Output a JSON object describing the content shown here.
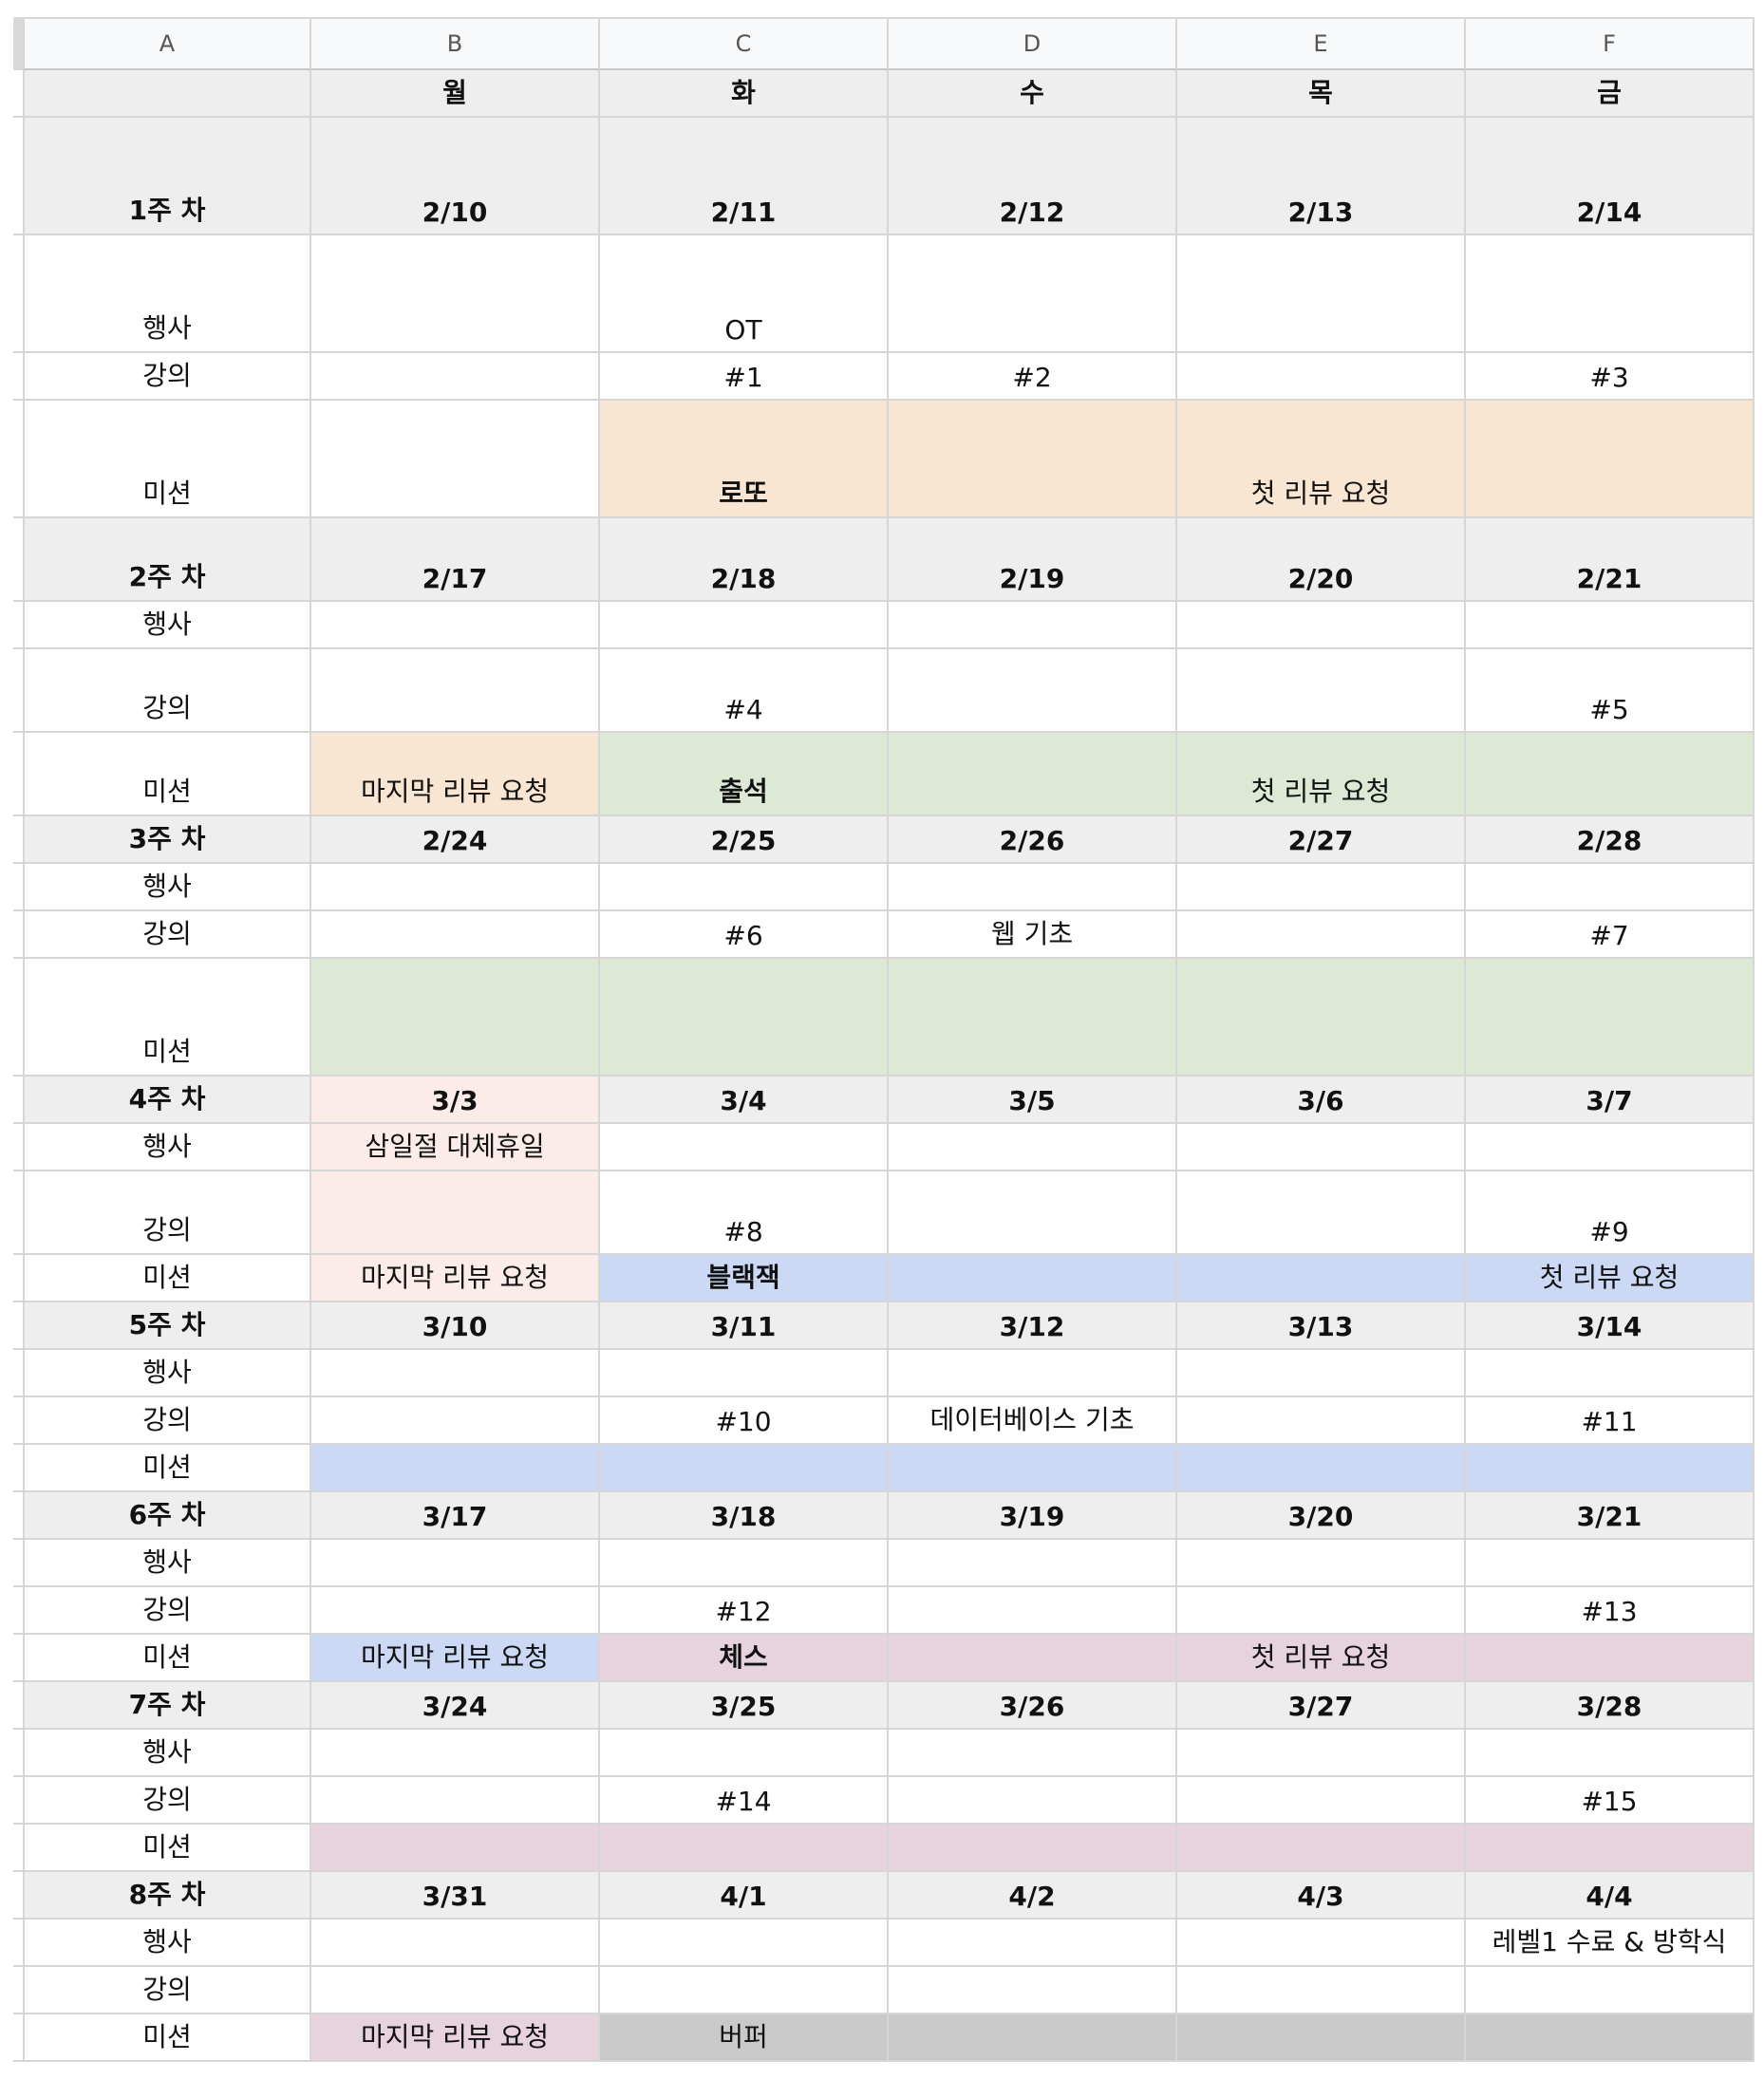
{
  "columns": [
    "A",
    "B",
    "C",
    "D",
    "E",
    "F"
  ],
  "colors": {
    "week_header": "#eeeeee",
    "orange": "#f8e5d2",
    "green": "#dde9d5",
    "pink": "#fbecea",
    "blue": "#cbd9f4",
    "purple": "#e6d3de",
    "gray": "#c9c9c9",
    "white": "#ffffff"
  },
  "rows": [
    {
      "h": 50,
      "type": "week",
      "cells": [
        {
          "t": "",
          "bg": "week_header"
        },
        {
          "t": "월",
          "bg": "week_header",
          "bold": true
        },
        {
          "t": "화",
          "bg": "week_header",
          "bold": true
        },
        {
          "t": "수",
          "bg": "week_header",
          "bold": true
        },
        {
          "t": "목",
          "bg": "week_header",
          "bold": true
        },
        {
          "t": "금",
          "bg": "week_header",
          "bold": true
        }
      ]
    },
    {
      "h": 124,
      "type": "week",
      "cells": [
        {
          "t": "1주 차",
          "bg": "week_header",
          "bold": true
        },
        {
          "t": "2/10",
          "bg": "week_header",
          "bold": true
        },
        {
          "t": "2/11",
          "bg": "week_header",
          "bold": true
        },
        {
          "t": "2/12",
          "bg": "week_header",
          "bold": true
        },
        {
          "t": "2/13",
          "bg": "week_header",
          "bold": true
        },
        {
          "t": "2/14",
          "bg": "week_header",
          "bold": true
        }
      ]
    },
    {
      "h": 124,
      "cells": [
        {
          "t": "행사"
        },
        {
          "t": ""
        },
        {
          "t": "OT"
        },
        {
          "t": ""
        },
        {
          "t": ""
        },
        {
          "t": ""
        }
      ]
    },
    {
      "h": 50,
      "cells": [
        {
          "t": "강의"
        },
        {
          "t": ""
        },
        {
          "t": "#1"
        },
        {
          "t": "#2"
        },
        {
          "t": ""
        },
        {
          "t": "#3"
        }
      ]
    },
    {
      "h": 124,
      "cells": [
        {
          "t": "미션"
        },
        {
          "t": ""
        },
        {
          "t": "로또",
          "bg": "orange",
          "bold": true
        },
        {
          "t": "",
          "bg": "orange"
        },
        {
          "t": "첫 리뷰 요청",
          "bg": "orange"
        },
        {
          "t": "",
          "bg": "orange"
        }
      ]
    },
    {
      "h": 88,
      "type": "week",
      "cells": [
        {
          "t": "2주 차",
          "bg": "week_header",
          "bold": true
        },
        {
          "t": "2/17",
          "bg": "week_header",
          "bold": true
        },
        {
          "t": "2/18",
          "bg": "week_header",
          "bold": true
        },
        {
          "t": "2/19",
          "bg": "week_header",
          "bold": true
        },
        {
          "t": "2/20",
          "bg": "week_header",
          "bold": true
        },
        {
          "t": "2/21",
          "bg": "week_header",
          "bold": true
        }
      ]
    },
    {
      "h": 50,
      "cells": [
        {
          "t": "행사"
        },
        {
          "t": ""
        },
        {
          "t": ""
        },
        {
          "t": ""
        },
        {
          "t": ""
        },
        {
          "t": ""
        }
      ]
    },
    {
      "h": 88,
      "cells": [
        {
          "t": "강의"
        },
        {
          "t": ""
        },
        {
          "t": "#4"
        },
        {
          "t": ""
        },
        {
          "t": ""
        },
        {
          "t": "#5"
        }
      ]
    },
    {
      "h": 88,
      "cells": [
        {
          "t": "미션"
        },
        {
          "t": "마지막 리뷰 요청",
          "bg": "orange"
        },
        {
          "t": "출석",
          "bg": "green",
          "bold": true
        },
        {
          "t": "",
          "bg": "green"
        },
        {
          "t": "첫 리뷰 요청",
          "bg": "green"
        },
        {
          "t": "",
          "bg": "green"
        }
      ]
    },
    {
      "h": 50,
      "type": "week",
      "cells": [
        {
          "t": "3주 차",
          "bg": "week_header",
          "bold": true
        },
        {
          "t": "2/24",
          "bg": "week_header",
          "bold": true
        },
        {
          "t": "2/25",
          "bg": "week_header",
          "bold": true
        },
        {
          "t": "2/26",
          "bg": "week_header",
          "bold": true
        },
        {
          "t": "2/27",
          "bg": "week_header",
          "bold": true
        },
        {
          "t": "2/28",
          "bg": "week_header",
          "bold": true
        }
      ]
    },
    {
      "h": 50,
      "cells": [
        {
          "t": "행사"
        },
        {
          "t": ""
        },
        {
          "t": ""
        },
        {
          "t": ""
        },
        {
          "t": ""
        },
        {
          "t": ""
        }
      ]
    },
    {
      "h": 50,
      "cells": [
        {
          "t": "강의"
        },
        {
          "t": ""
        },
        {
          "t": "#6"
        },
        {
          "t": "웹 기초"
        },
        {
          "t": ""
        },
        {
          "t": "#7"
        }
      ]
    },
    {
      "h": 124,
      "cells": [
        {
          "t": "미션"
        },
        {
          "t": "",
          "bg": "green"
        },
        {
          "t": "",
          "bg": "green"
        },
        {
          "t": "",
          "bg": "green"
        },
        {
          "t": "",
          "bg": "green"
        },
        {
          "t": "",
          "bg": "green"
        }
      ]
    },
    {
      "h": 50,
      "type": "week",
      "cells": [
        {
          "t": "4주 차",
          "bg": "week_header",
          "bold": true
        },
        {
          "t": "3/3",
          "bg": "pink",
          "bold": true
        },
        {
          "t": "3/4",
          "bg": "week_header",
          "bold": true
        },
        {
          "t": "3/5",
          "bg": "week_header",
          "bold": true
        },
        {
          "t": "3/6",
          "bg": "week_header",
          "bold": true
        },
        {
          "t": "3/7",
          "bg": "week_header",
          "bold": true
        }
      ]
    },
    {
      "h": 50,
      "cells": [
        {
          "t": "행사"
        },
        {
          "t": "삼일절 대체휴일",
          "bg": "pink"
        },
        {
          "t": ""
        },
        {
          "t": ""
        },
        {
          "t": ""
        },
        {
          "t": ""
        }
      ]
    },
    {
      "h": 88,
      "cells": [
        {
          "t": "강의"
        },
        {
          "t": "",
          "bg": "pink"
        },
        {
          "t": "#8"
        },
        {
          "t": ""
        },
        {
          "t": ""
        },
        {
          "t": "#9"
        }
      ]
    },
    {
      "h": 50,
      "cells": [
        {
          "t": "미션"
        },
        {
          "t": "마지막 리뷰 요청",
          "bg": "pink"
        },
        {
          "t": "블랙잭",
          "bg": "blue",
          "bold": true
        },
        {
          "t": "",
          "bg": "blue"
        },
        {
          "t": "",
          "bg": "blue"
        },
        {
          "t": "첫 리뷰 요청",
          "bg": "blue"
        }
      ]
    },
    {
      "h": 50,
      "type": "week",
      "cells": [
        {
          "t": "5주 차",
          "bg": "week_header",
          "bold": true
        },
        {
          "t": "3/10",
          "bg": "week_header",
          "bold": true
        },
        {
          "t": "3/11",
          "bg": "week_header",
          "bold": true
        },
        {
          "t": "3/12",
          "bg": "week_header",
          "bold": true
        },
        {
          "t": "3/13",
          "bg": "week_header",
          "bold": true
        },
        {
          "t": "3/14",
          "bg": "week_header",
          "bold": true
        }
      ]
    },
    {
      "h": 50,
      "cells": [
        {
          "t": "행사"
        },
        {
          "t": ""
        },
        {
          "t": ""
        },
        {
          "t": ""
        },
        {
          "t": ""
        },
        {
          "t": ""
        }
      ]
    },
    {
      "h": 50,
      "cells": [
        {
          "t": "강의"
        },
        {
          "t": ""
        },
        {
          "t": "#10"
        },
        {
          "t": "데이터베이스 기초"
        },
        {
          "t": ""
        },
        {
          "t": "#11"
        }
      ]
    },
    {
      "h": 50,
      "cells": [
        {
          "t": "미션"
        },
        {
          "t": "",
          "bg": "blue"
        },
        {
          "t": "",
          "bg": "blue"
        },
        {
          "t": "",
          "bg": "blue"
        },
        {
          "t": "",
          "bg": "blue"
        },
        {
          "t": "",
          "bg": "blue"
        }
      ]
    },
    {
      "h": 50,
      "type": "week",
      "cells": [
        {
          "t": "6주 차",
          "bg": "week_header",
          "bold": true
        },
        {
          "t": "3/17",
          "bg": "week_header",
          "bold": true
        },
        {
          "t": "3/18",
          "bg": "week_header",
          "bold": true
        },
        {
          "t": "3/19",
          "bg": "week_header",
          "bold": true
        },
        {
          "t": "3/20",
          "bg": "week_header",
          "bold": true
        },
        {
          "t": "3/21",
          "bg": "week_header",
          "bold": true
        }
      ]
    },
    {
      "h": 50,
      "cells": [
        {
          "t": "행사"
        },
        {
          "t": ""
        },
        {
          "t": ""
        },
        {
          "t": ""
        },
        {
          "t": ""
        },
        {
          "t": ""
        }
      ]
    },
    {
      "h": 50,
      "cells": [
        {
          "t": "강의"
        },
        {
          "t": ""
        },
        {
          "t": "#12"
        },
        {
          "t": ""
        },
        {
          "t": ""
        },
        {
          "t": "#13"
        }
      ]
    },
    {
      "h": 50,
      "cells": [
        {
          "t": "미션"
        },
        {
          "t": "마지막 리뷰 요청",
          "bg": "blue"
        },
        {
          "t": "체스",
          "bg": "purple",
          "bold": true
        },
        {
          "t": "",
          "bg": "purple"
        },
        {
          "t": "첫 리뷰 요청",
          "bg": "purple"
        },
        {
          "t": "",
          "bg": "purple"
        }
      ]
    },
    {
      "h": 50,
      "type": "week",
      "cells": [
        {
          "t": "7주 차",
          "bg": "week_header",
          "bold": true
        },
        {
          "t": "3/24",
          "bg": "week_header",
          "bold": true
        },
        {
          "t": "3/25",
          "bg": "week_header",
          "bold": true
        },
        {
          "t": "3/26",
          "bg": "week_header",
          "bold": true
        },
        {
          "t": "3/27",
          "bg": "week_header",
          "bold": true
        },
        {
          "t": "3/28",
          "bg": "week_header",
          "bold": true
        }
      ]
    },
    {
      "h": 50,
      "cells": [
        {
          "t": "행사"
        },
        {
          "t": ""
        },
        {
          "t": ""
        },
        {
          "t": ""
        },
        {
          "t": ""
        },
        {
          "t": ""
        }
      ]
    },
    {
      "h": 50,
      "cells": [
        {
          "t": "강의"
        },
        {
          "t": ""
        },
        {
          "t": "#14"
        },
        {
          "t": ""
        },
        {
          "t": ""
        },
        {
          "t": "#15"
        }
      ]
    },
    {
      "h": 50,
      "cells": [
        {
          "t": "미션"
        },
        {
          "t": "",
          "bg": "purple"
        },
        {
          "t": "",
          "bg": "purple"
        },
        {
          "t": "",
          "bg": "purple"
        },
        {
          "t": "",
          "bg": "purple"
        },
        {
          "t": "",
          "bg": "purple"
        }
      ]
    },
    {
      "h": 50,
      "type": "week",
      "cells": [
        {
          "t": "8주 차",
          "bg": "week_header",
          "bold": true
        },
        {
          "t": "3/31",
          "bg": "week_header",
          "bold": true
        },
        {
          "t": "4/1",
          "bg": "week_header",
          "bold": true
        },
        {
          "t": "4/2",
          "bg": "week_header",
          "bold": true
        },
        {
          "t": "4/3",
          "bg": "week_header",
          "bold": true
        },
        {
          "t": "4/4",
          "bg": "week_header",
          "bold": true
        }
      ]
    },
    {
      "h": 50,
      "cells": [
        {
          "t": "행사"
        },
        {
          "t": ""
        },
        {
          "t": ""
        },
        {
          "t": ""
        },
        {
          "t": ""
        },
        {
          "t": "레벨1 수료 & 방학식"
        }
      ]
    },
    {
      "h": 50,
      "cells": [
        {
          "t": "강의"
        },
        {
          "t": ""
        },
        {
          "t": ""
        },
        {
          "t": ""
        },
        {
          "t": ""
        },
        {
          "t": ""
        }
      ]
    },
    {
      "h": 50,
      "cells": [
        {
          "t": "미션"
        },
        {
          "t": "마지막 리뷰 요청",
          "bg": "purple"
        },
        {
          "t": "버퍼",
          "bg": "gray"
        },
        {
          "t": "",
          "bg": "gray"
        },
        {
          "t": "",
          "bg": "gray"
        },
        {
          "t": "",
          "bg": "gray"
        }
      ]
    }
  ]
}
